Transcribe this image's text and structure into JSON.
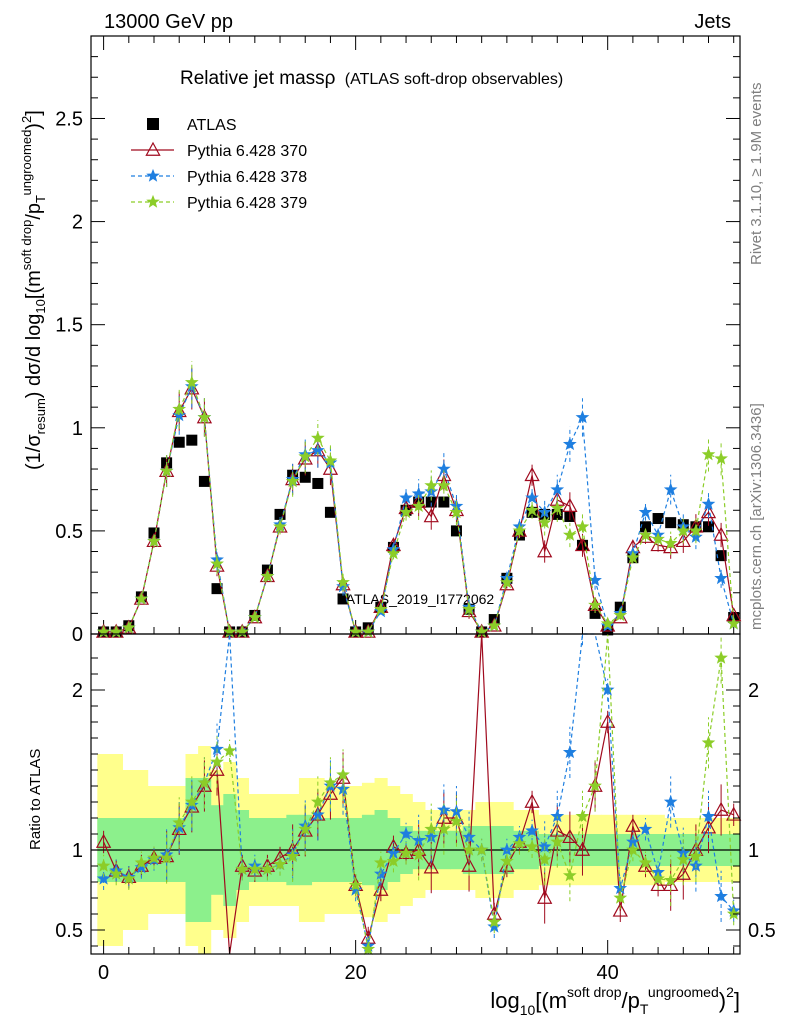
{
  "header": {
    "left": "13000 GeV pp",
    "right": "Jets",
    "rivet": "Rivet 3.1.10, ≥ 1.9M events",
    "mcplots": "mcplots.cern.ch [arXiv:1306.3436]",
    "watermark": "ATLAS_2019_I1772062"
  },
  "chart_data": [
    {
      "type": "scatter",
      "title_main": "Relative jet massρ",
      "title_sub": "(ATLAS soft-drop observables)",
      "ylabel": "(1/σresum) dσ/d log10[(m soft drop/pT ungroomed)2]",
      "ylabel_parts": {
        "a": "(1/σ",
        "b": "resum",
        "c": ") dσ/d log",
        "d": "10",
        "e": "[(m",
        "f": "soft drop",
        "g": "/p",
        "h": "T",
        "i": "ungroomed",
        "j": ")",
        "k": "2",
        "l": "]"
      },
      "xlim": [
        -1,
        50.5
      ],
      "ylim": [
        0,
        2.9
      ],
      "yticks": [
        {
          "v": 0,
          "label": "0"
        },
        {
          "v": 0.5,
          "label": "0.5"
        },
        {
          "v": 1,
          "label": "1"
        },
        {
          "v": 1.5,
          "label": "1.5"
        },
        {
          "v": 2,
          "label": "2"
        },
        {
          "v": 2.5,
          "label": "2.5"
        }
      ],
      "legend": {
        "placement": "top-left",
        "entries": [
          {
            "name": "ATLAS",
            "marker": "square",
            "color": "#000000"
          },
          {
            "name": "Pythia 6.428 370",
            "marker": "triangle",
            "color": "#a00a1e"
          },
          {
            "name": "Pythia 6.428 378",
            "marker": "star",
            "color": "#1f7fe0"
          },
          {
            "name": "Pythia 6.428 379",
            "marker": "star",
            "color": "#8ccd28"
          }
        ]
      },
      "x": [
        0,
        1,
        2,
        3,
        4,
        5,
        6,
        7,
        8,
        9,
        10,
        11,
        12,
        13,
        14,
        15,
        16,
        17,
        18,
        19,
        20,
        21,
        22,
        23,
        24,
        25,
        26,
        27,
        28,
        29,
        30,
        31,
        32,
        33,
        34,
        35,
        36,
        37,
        38,
        39,
        40,
        41,
        42,
        43,
        44,
        45,
        46,
        47,
        48,
        49,
        50
      ],
      "series": [
        {
          "name": "ATLAS",
          "color": "#000000",
          "values": [
            0.01,
            0.01,
            0.04,
            0.18,
            0.49,
            0.83,
            0.93,
            0.94,
            0.74,
            0.22,
            0.01,
            0.01,
            0.09,
            0.31,
            0.58,
            0.77,
            0.76,
            0.73,
            0.59,
            0.17,
            0.01,
            0.03,
            0.13,
            0.42,
            0.6,
            0.64,
            0.64,
            0.64,
            0.5,
            0.12,
            0.01,
            0.07,
            0.27,
            0.48,
            0.59,
            0.58,
            0.58,
            0.57,
            0.43,
            0.1,
            0.02,
            0.13,
            0.37,
            0.52,
            0.56,
            0.54,
            0.53,
            0.52,
            0.52,
            0.38,
            0.08
          ]
        },
        {
          "name": "Pythia 6.428 370",
          "color": "#a00a1e",
          "values": [
            0.01,
            0.01,
            0.03,
            0.17,
            0.45,
            0.79,
            1.08,
            1.19,
            1.05,
            0.33,
            0.01,
            0.01,
            0.08,
            0.28,
            0.52,
            0.75,
            0.85,
            0.89,
            0.8,
            0.24,
            0.01,
            0.01,
            0.13,
            0.43,
            0.61,
            0.64,
            0.57,
            0.77,
            0.6,
            0.11,
            0.01,
            0.04,
            0.24,
            0.5,
            0.77,
            0.4,
            0.65,
            0.62,
            0.43,
            0.14,
            0.04,
            0.08,
            0.42,
            0.47,
            0.43,
            0.42,
            0.45,
            0.52,
            0.59,
            0.48,
            0.09
          ]
        },
        {
          "name": "Pythia 6.428 378",
          "color": "#1f7fe0",
          "values": [
            0.01,
            0.01,
            0.03,
            0.17,
            0.45,
            0.79,
            1.06,
            1.2,
            1.05,
            0.36,
            0.01,
            0.01,
            0.08,
            0.28,
            0.53,
            0.75,
            0.87,
            0.89,
            0.83,
            0.23,
            0.01,
            0.01,
            0.11,
            0.41,
            0.66,
            0.68,
            0.69,
            0.8,
            0.62,
            0.13,
            0.01,
            0.04,
            0.27,
            0.52,
            0.66,
            0.59,
            0.7,
            0.92,
            1.05,
            0.26,
            0.04,
            0.1,
            0.39,
            0.59,
            0.48,
            0.7,
            0.52,
            0.47,
            0.63,
            0.27,
            0.05
          ]
        },
        {
          "name": "Pythia 6.428 379",
          "color": "#8ccd28",
          "values": [
            0.01,
            0.01,
            0.03,
            0.17,
            0.45,
            0.79,
            1.09,
            1.22,
            1.05,
            0.34,
            0.01,
            0.01,
            0.08,
            0.28,
            0.52,
            0.74,
            0.86,
            0.95,
            0.84,
            0.25,
            0.01,
            0.01,
            0.12,
            0.39,
            0.59,
            0.62,
            0.72,
            0.72,
            0.59,
            0.12,
            0.01,
            0.04,
            0.25,
            0.5,
            0.6,
            0.54,
            0.61,
            0.48,
            0.52,
            0.14,
            0.05,
            0.09,
            0.37,
            0.48,
            0.46,
            0.44,
            0.5,
            0.5,
            0.87,
            0.85,
            0.05
          ]
        }
      ]
    },
    {
      "type": "line",
      "ylabel": "Ratio to ATLAS",
      "xlabel": "log10[(m soft drop/pT ungroomed)2]",
      "xlabel_parts": {
        "a": "log",
        "b": "10",
        "c": "[(m",
        "d": "soft drop",
        "e": "/p",
        "f": "T",
        "g": "ungroomed",
        "h": ")",
        "i": "2",
        "j": "]"
      },
      "xlim": [
        -1,
        50.5
      ],
      "ylim": [
        0.35,
        2.35
      ],
      "yticks": [
        {
          "v": 0.5,
          "label": "0.5"
        },
        {
          "v": 1,
          "label": "1"
        },
        {
          "v": 2,
          "label": "2"
        }
      ],
      "xticks": [
        {
          "v": 0,
          "label": "0"
        },
        {
          "v": 20,
          "label": "20"
        },
        {
          "v": 40,
          "label": "40"
        }
      ],
      "band_green_halfwidth": [
        0.2,
        0.2,
        0.2,
        0.2,
        0.2,
        0.2,
        0.2,
        0.45,
        0.45,
        0.28,
        0.35,
        0.25,
        0.2,
        0.2,
        0.2,
        0.22,
        0.22,
        0.2,
        0.2,
        0.2,
        0.2,
        0.22,
        0.25,
        0.2,
        0.15,
        0.12,
        0.12,
        0.12,
        0.12,
        0.15,
        0.15,
        0.15,
        0.15,
        0.12,
        0.12,
        0.1,
        0.1,
        0.1,
        0.1,
        0.1,
        0.1,
        0.1,
        0.1,
        0.1,
        0.1,
        0.1,
        0.1,
        0.1,
        0.1,
        0.1,
        0.1
      ],
      "band_yellow_halfwidth": [
        0.6,
        0.6,
        0.5,
        0.5,
        0.4,
        0.4,
        0.4,
        0.6,
        0.65,
        0.5,
        0.55,
        0.45,
        0.35,
        0.35,
        0.35,
        0.35,
        0.45,
        0.45,
        0.4,
        0.4,
        0.4,
        0.42,
        0.45,
        0.4,
        0.35,
        0.3,
        0.25,
        0.25,
        0.25,
        0.25,
        0.3,
        0.3,
        0.3,
        0.25,
        0.25,
        0.22,
        0.22,
        0.22,
        0.22,
        0.22,
        0.22,
        0.22,
        0.22,
        0.22,
        0.22,
        0.2,
        0.2,
        0.2,
        0.2,
        0.2,
        0.2
      ],
      "series": [
        {
          "name": "Pythia 6.428 370",
          "color": "#a00a1e",
          "values": [
            1.05,
            0.87,
            0.83,
            0.9,
            0.95,
            0.96,
            1.13,
            1.27,
            1.4,
            1.5,
            0.1,
            0.9,
            0.87,
            0.9,
            0.95,
            1.0,
            1.12,
            1.22,
            1.35,
            1.45,
            0.78,
            0.45,
            0.75,
            1.02,
            0.98,
            1.0,
            0.89,
            1.2,
            1.2,
            0.9,
            3.0,
            0.6,
            0.9,
            1.05,
            1.3,
            0.7,
            1.12,
            1.08,
            1.0,
            1.4,
            1.8,
            0.62,
            1.15,
            0.9,
            0.78,
            0.78,
            0.85,
            1.0,
            1.14,
            1.25,
            1.22
          ]
        },
        {
          "name": "Pythia 6.428 378",
          "color": "#1f7fe0",
          "values": [
            0.82,
            0.87,
            0.83,
            0.89,
            0.94,
            0.97,
            1.14,
            1.28,
            1.42,
            1.63,
            2.5,
            0.88,
            0.9,
            0.88,
            0.91,
            0.97,
            1.15,
            1.22,
            1.4,
            1.38,
            0.75,
            0.4,
            0.85,
            0.98,
            1.1,
            1.06,
            1.08,
            1.25,
            1.24,
            1.08,
            1.0,
            0.52,
            1.0,
            1.08,
            1.12,
            1.02,
            1.21,
            1.61,
            2.44,
            2.6,
            2.0,
            0.76,
            1.05,
            1.13,
            0.86,
            1.3,
            0.98,
            0.9,
            1.21,
            0.71,
            0.62
          ]
        },
        {
          "name": "Pythia 6.428 379",
          "color": "#8ccd28",
          "values": [
            0.9,
            0.85,
            0.82,
            0.92,
            0.95,
            0.95,
            1.17,
            1.3,
            1.42,
            1.55,
            1.62,
            0.88,
            0.88,
            0.88,
            0.91,
            0.96,
            1.13,
            1.3,
            1.42,
            1.47,
            0.78,
            0.38,
            0.92,
            0.93,
            0.98,
            0.97,
            1.13,
            1.13,
            1.18,
            1.0,
            1.0,
            0.55,
            0.93,
            1.04,
            1.02,
            0.94,
            1.05,
            0.84,
            1.21,
            1.4,
            2.5,
            0.7,
            1.0,
            0.92,
            0.82,
            0.81,
            0.94,
            0.96,
            1.67,
            2.2,
            0.6
          ]
        }
      ]
    }
  ]
}
